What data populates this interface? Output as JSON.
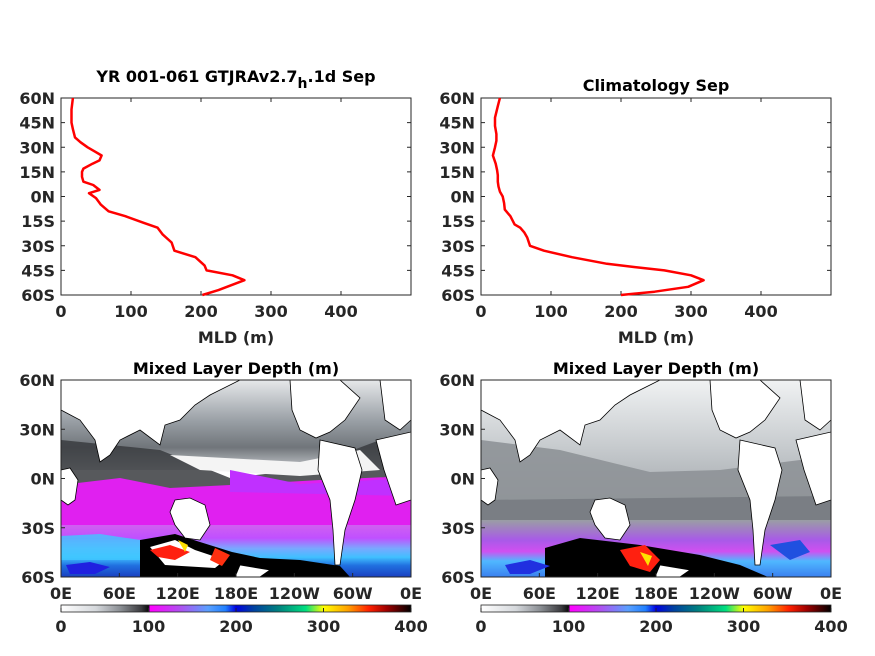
{
  "chart_data": [
    {
      "type": "line",
      "title_main": "YR 001-061 GTJRAv2.7",
      "title_sub": "h",
      "title_tail": ".1d Sep",
      "xlabel": "MLD (m)",
      "ylabel": "",
      "xlim": [
        0,
        500
      ],
      "ylim": [
        -60,
        60
      ],
      "x_ticks": [
        "0",
        "100",
        "200",
        "300",
        "400"
      ],
      "y_ticks": [
        "60N",
        "45N",
        "30N",
        "15N",
        "0N",
        "15S",
        "30S",
        "45S",
        "60S"
      ],
      "color": "#ff0000",
      "series": [
        {
          "x": [
            202,
            225,
            262,
            245,
            208,
            205,
            192,
            162,
            158,
            145,
            138,
            118,
            92,
            68,
            57,
            50,
            40,
            55,
            46,
            32,
            30,
            30,
            32,
            45,
            55,
            58,
            50,
            38,
            28,
            20,
            17,
            15,
            15,
            17
          ],
          "y": [
            -60,
            -57,
            -51,
            -48,
            -45,
            -42,
            -37,
            -33,
            -28,
            -23,
            -19,
            -16,
            -12,
            -9,
            -5,
            -1,
            2,
            4,
            7,
            9,
            12,
            15,
            17,
            20,
            22,
            25,
            27,
            30,
            33,
            36,
            41,
            45,
            53,
            60
          ]
        }
      ]
    },
    {
      "type": "line",
      "title": "Climatology Sep",
      "xlabel": "MLD (m)",
      "ylabel": "",
      "xlim": [
        0,
        500
      ],
      "ylim": [
        -60,
        60
      ],
      "x_ticks": [
        "0",
        "100",
        "200",
        "300",
        "400"
      ],
      "y_ticks": [
        "60N",
        "45N",
        "30N",
        "15N",
        "0N",
        "15S",
        "30S",
        "45S",
        "60S"
      ],
      "color": "#ff0000",
      "series": [
        {
          "x": [
            200,
            248,
            296,
            318,
            300,
            262,
            220,
            180,
            130,
            90,
            70,
            66,
            62,
            56,
            48,
            42,
            34,
            33,
            31,
            27,
            25,
            24,
            24,
            23,
            21,
            17,
            20,
            22,
            22,
            20,
            20,
            24,
            27
          ],
          "y": [
            -60,
            -58,
            -55,
            -51,
            -48,
            -45,
            -43,
            -41,
            -37,
            -33,
            -30,
            -25,
            -22,
            -19,
            -17,
            -12,
            -8,
            -4,
            0,
            3,
            6,
            9,
            13,
            16,
            20,
            25,
            30,
            34,
            38,
            43,
            48,
            55,
            60
          ]
        }
      ]
    },
    {
      "type": "heatmap",
      "title": "Mixed Layer Depth (m)",
      "x_ticks": [
        "0E",
        "60E",
        "120E",
        "180E",
        "120W",
        "60W",
        "0E"
      ],
      "y_ticks": [
        "60N",
        "30N",
        "0N",
        "30S",
        "60S"
      ],
      "colorbar_ticks": [
        "0",
        "100",
        "200",
        "300",
        "400"
      ],
      "colorbar_range": [
        0,
        400
      ]
    },
    {
      "type": "heatmap",
      "title": "Mixed Layer Depth (m)",
      "x_ticks": [
        "0E",
        "60E",
        "120E",
        "180E",
        "120W",
        "60W",
        "0E"
      ],
      "y_ticks": [
        "60N",
        "30N",
        "0N",
        "30S",
        "60S"
      ],
      "colorbar_ticks": [
        "0",
        "100",
        "200",
        "300",
        "400"
      ],
      "colorbar_range": [
        0,
        400
      ]
    }
  ]
}
